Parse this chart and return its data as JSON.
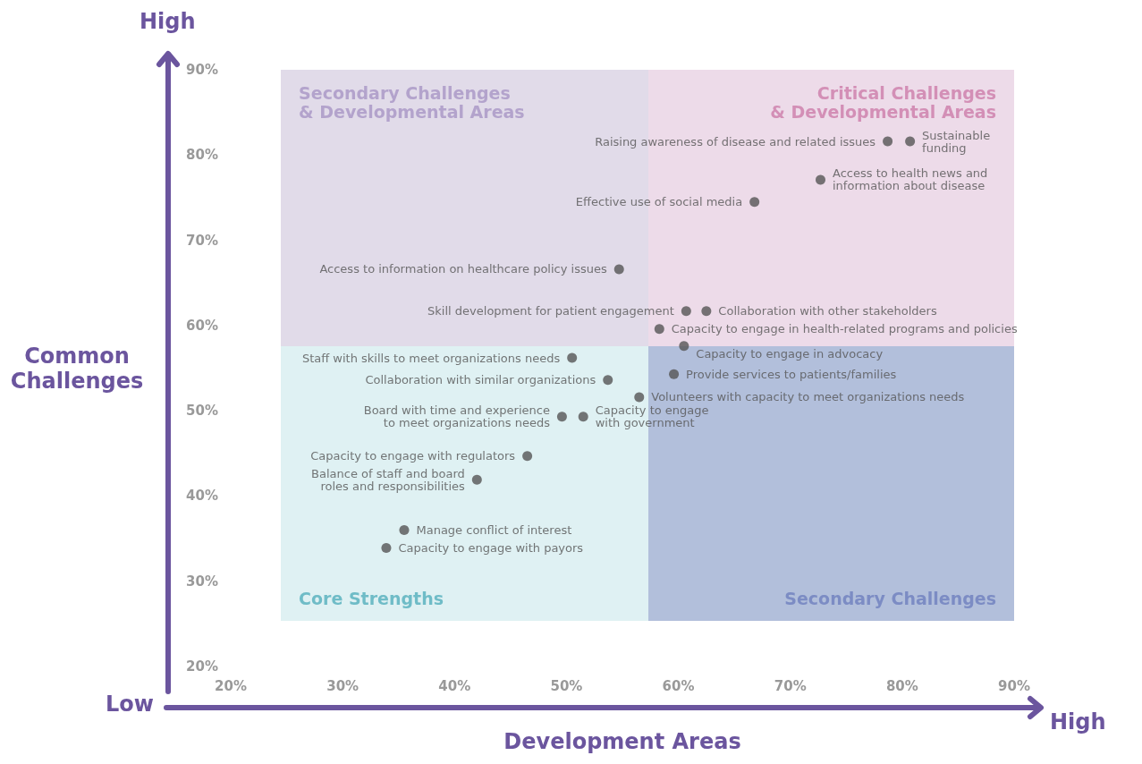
{
  "chart_data": {
    "type": "scatter",
    "xlabel": "Development Areas",
    "ylabel": "Common\nChallenges",
    "annotations": [
      "High",
      "Low",
      "High",
      "Secondary Challenges\n& Developmental Areas",
      "Critical Challenges\n& Developmental Areas",
      "Core Strengths",
      "Secondary Challenges"
    ],
    "xlim": [
      20,
      90
    ],
    "ylim": [
      20,
      90
    ],
    "xticks": [
      {
        "value": 20,
        "label": "20%"
      },
      {
        "value": 30,
        "label": "30%"
      },
      {
        "value": 40,
        "label": "40%"
      },
      {
        "value": 50,
        "label": "50%"
      },
      {
        "value": 60,
        "label": "60%"
      },
      {
        "value": 70,
        "label": "70%"
      },
      {
        "value": 80,
        "label": "80%"
      },
      {
        "value": 90,
        "label": "90%"
      }
    ],
    "yticks": [
      {
        "value": 20,
        "label": "20%"
      },
      {
        "value": 30,
        "label": "30%"
      },
      {
        "value": 40,
        "label": "40%"
      },
      {
        "value": 50,
        "label": "50%"
      },
      {
        "value": 60,
        "label": "60%"
      },
      {
        "value": 70,
        "label": "70%"
      },
      {
        "value": 80,
        "label": "80%"
      },
      {
        "value": 90,
        "label": "90%"
      }
    ],
    "grid": false,
    "legend": false,
    "marker": "circle",
    "series": [
      {
        "name": "Raising awareness of disease and related issues",
        "color": "#555555",
        "x": [
          78.7
        ],
        "values": [
          81.6
        ]
      },
      {
        "name": "Sustainable\nfunding",
        "color": "#555555",
        "x": [
          80.7
        ],
        "values": [
          81.6
        ]
      },
      {
        "name": "Access to health news and\ninformation about disease",
        "color": "#555555",
        "x": [
          72.7
        ],
        "values": [
          77.1
        ]
      },
      {
        "name": "Effective use of social media",
        "color": "#555555",
        "x": [
          66.8
        ],
        "values": [
          74.5
        ]
      },
      {
        "name": "Access to information on healthcare policy issues",
        "color": "#555555",
        "x": [
          54.7
        ],
        "values": [
          66.6
        ]
      },
      {
        "name": "Skill development for patient engagement",
        "color": "#555555",
        "x": [
          60.7
        ],
        "values": [
          61.7
        ]
      },
      {
        "name": "Collaboration with other stakeholders",
        "color": "#555555",
        "x": [
          62.5
        ],
        "values": [
          61.7
        ]
      },
      {
        "name": "Capacity to engage in health-related programs and policies",
        "color": "#555555",
        "x": [
          58.3
        ],
        "values": [
          59.6
        ]
      },
      {
        "name": "Capacity to engage in advocacy",
        "color": "#555555",
        "x": [
          60.5
        ],
        "values": [
          57.6
        ]
      },
      {
        "name": "Staff with skills to meet organizations needs",
        "color": "#555555",
        "x": [
          50.5
        ],
        "values": [
          56.2
        ]
      },
      {
        "name": "Collaboration with similar organizations",
        "color": "#555555",
        "x": [
          53.7
        ],
        "values": [
          53.6
        ]
      },
      {
        "name": "Provide services to patients/families",
        "color": "#555555",
        "x": [
          59.6
        ],
        "values": [
          54.3
        ]
      },
      {
        "name": "Volunteers with capacity to meet organizations needs",
        "color": "#555555",
        "x": [
          56.5
        ],
        "values": [
          51.6
        ]
      },
      {
        "name": "Board with time and experience\nto meet organizations needs",
        "color": "#555555",
        "x": [
          49.6
        ],
        "values": [
          49.3
        ]
      },
      {
        "name": "Capacity to engage\nwith government",
        "color": "#555555",
        "x": [
          51.5
        ],
        "values": [
          49.3
        ]
      },
      {
        "name": "Capacity to engage with regulators",
        "color": "#555555",
        "x": [
          46.5
        ],
        "values": [
          44.7
        ]
      },
      {
        "name": "Balance of staff and board\nroles and responsibilities",
        "color": "#555555",
        "x": [
          42.0
        ],
        "values": [
          41.9
        ]
      },
      {
        "name": "Manage conflict of interest",
        "color": "#555555",
        "x": [
          35.5
        ],
        "values": [
          36.0
        ]
      },
      {
        "name": "Capacity to engage with payors",
        "color": "#555555",
        "x": [
          33.9
        ],
        "values": [
          33.9
        ]
      }
    ]
  }
}
